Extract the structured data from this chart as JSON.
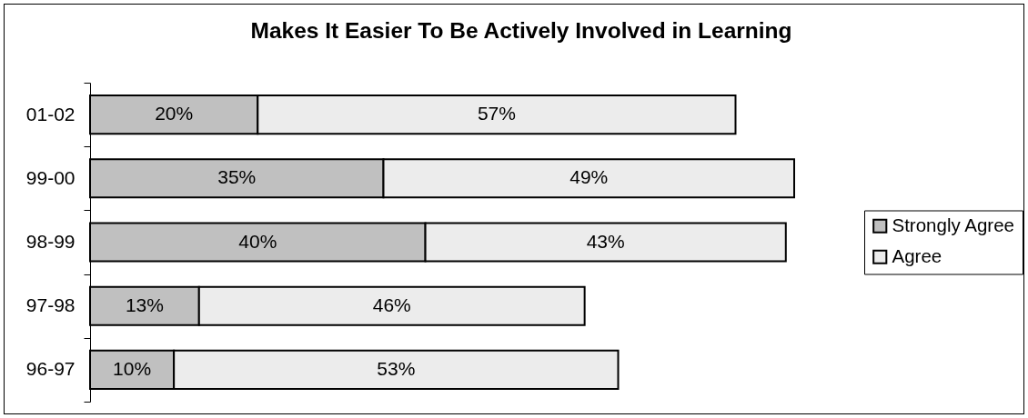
{
  "chart_data": {
    "type": "bar",
    "orientation": "horizontal",
    "stacked": true,
    "title": "Makes It Easier To Be Actively Involved in Learning",
    "categories": [
      "01-02",
      "99-00",
      "98-99",
      "97-98",
      "96-97"
    ],
    "series": [
      {
        "name": "Strongly Agree",
        "color": "#c0c0c0",
        "values": [
          20,
          35,
          40,
          13,
          10
        ],
        "value_labels": [
          "20%",
          "35%",
          "40%",
          "13%",
          "10%"
        ]
      },
      {
        "name": "Agree",
        "color": "#ececec",
        "values": [
          57,
          49,
          43,
          46,
          53
        ],
        "value_labels": [
          "57%",
          "49%",
          "43%",
          "46%",
          "53%"
        ]
      }
    ],
    "legend": "right"
  }
}
